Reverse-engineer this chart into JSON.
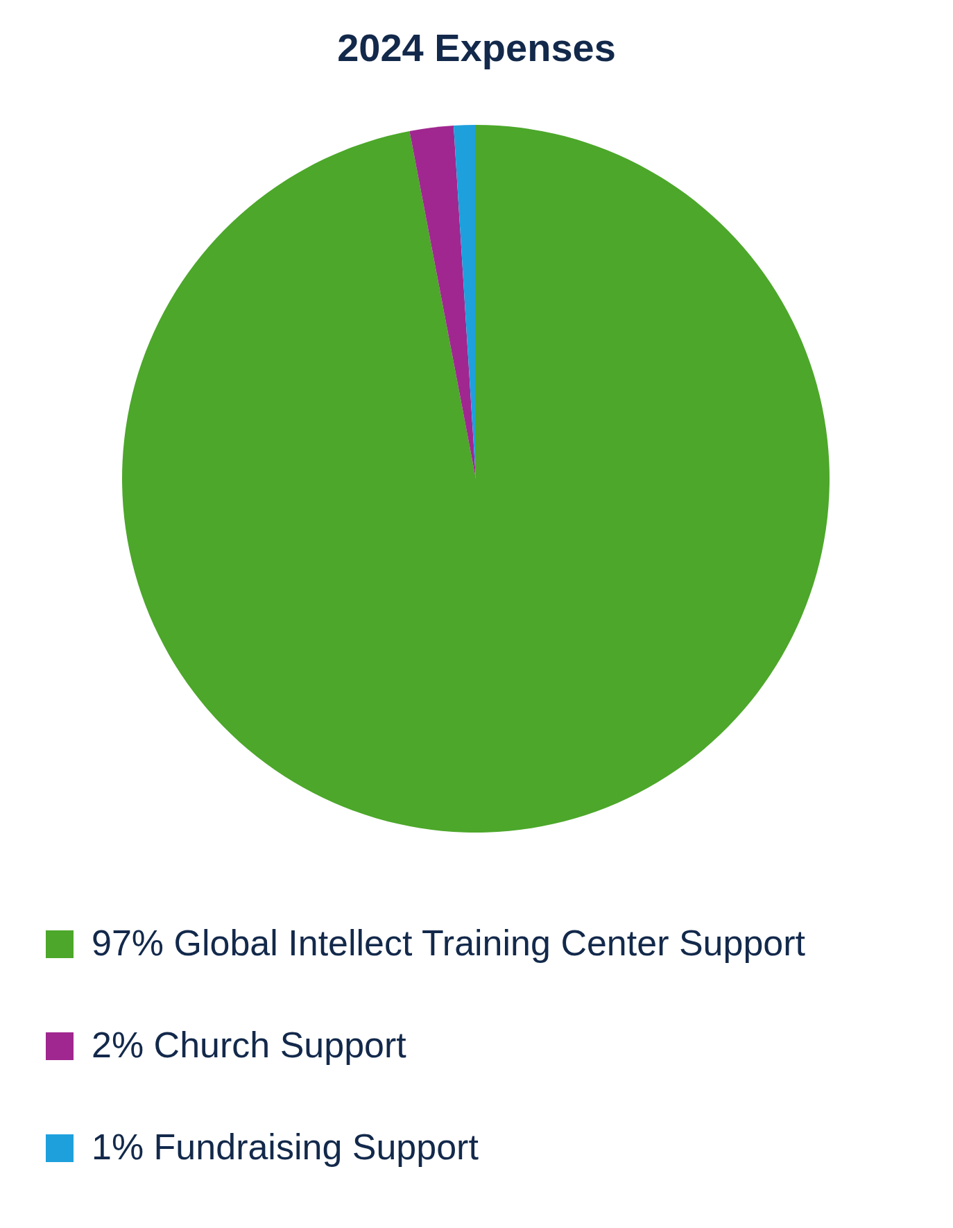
{
  "chart_data": {
    "type": "pie",
    "title": "2024 Expenses",
    "categories": [
      "97% Global Intellect Training Center Support",
      "2% Church Support",
      "1% Fundraising Support"
    ],
    "values": [
      97,
      2,
      1
    ],
    "colors": [
      "#4ca72a",
      "#a0278f",
      "#1ea0dc"
    ],
    "legend": "bottom"
  }
}
